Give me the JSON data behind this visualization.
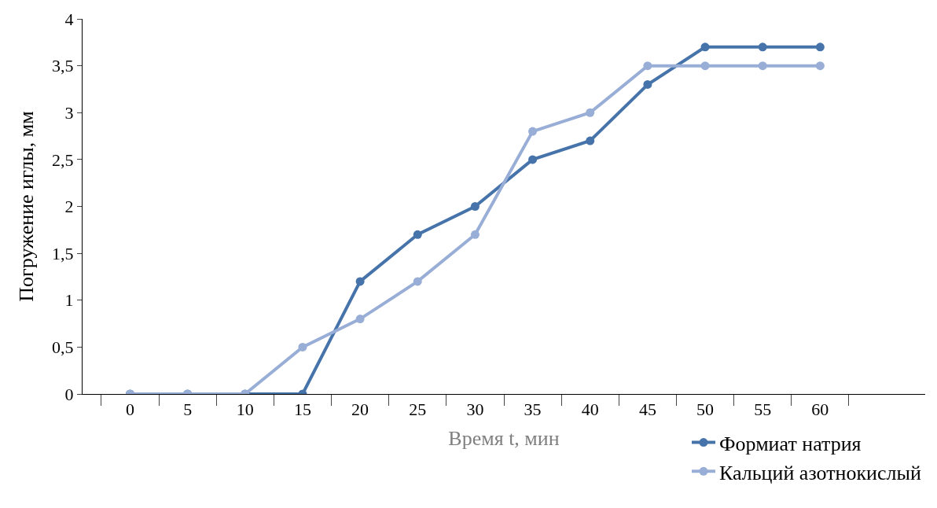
{
  "chart_data": {
    "type": "line",
    "xlabel": "Время t, мин",
    "ylabel": "Погружение иглы, мм",
    "categories": [
      "0",
      "5",
      "10",
      "15",
      "20",
      "25",
      "30",
      "35",
      "40",
      "45",
      "50",
      "55",
      "60",
      null
    ],
    "series": [
      {
        "name": "Формиат натрия",
        "color": "#4674aa",
        "values": [
          0,
          0,
          0,
          0,
          1.2,
          1.7,
          2,
          2.5,
          2.7,
          3.3,
          3.7,
          3.7,
          3.7,
          null
        ]
      },
      {
        "name": "Кальций азотнокислый",
        "color": "#98aed6",
        "values": [
          0,
          0,
          0,
          0.5,
          0.8,
          1.2,
          1.7,
          2.8,
          3,
          3.5,
          3.5,
          3.5,
          3.5,
          null
        ]
      }
    ],
    "ylim": [
      0,
      4
    ],
    "yticks": [
      0,
      {
        "value": 0.5,
        "label": "0,5"
      },
      1,
      {
        "value": 1.5,
        "label": "1,5"
      },
      2,
      {
        "value": 2.5,
        "label": "2,5"
      },
      3,
      {
        "value": 3.5,
        "label": "3,5"
      },
      4
    ],
    "legend": "bottom right",
    "marker": "circle",
    "line_style": "solid"
  }
}
